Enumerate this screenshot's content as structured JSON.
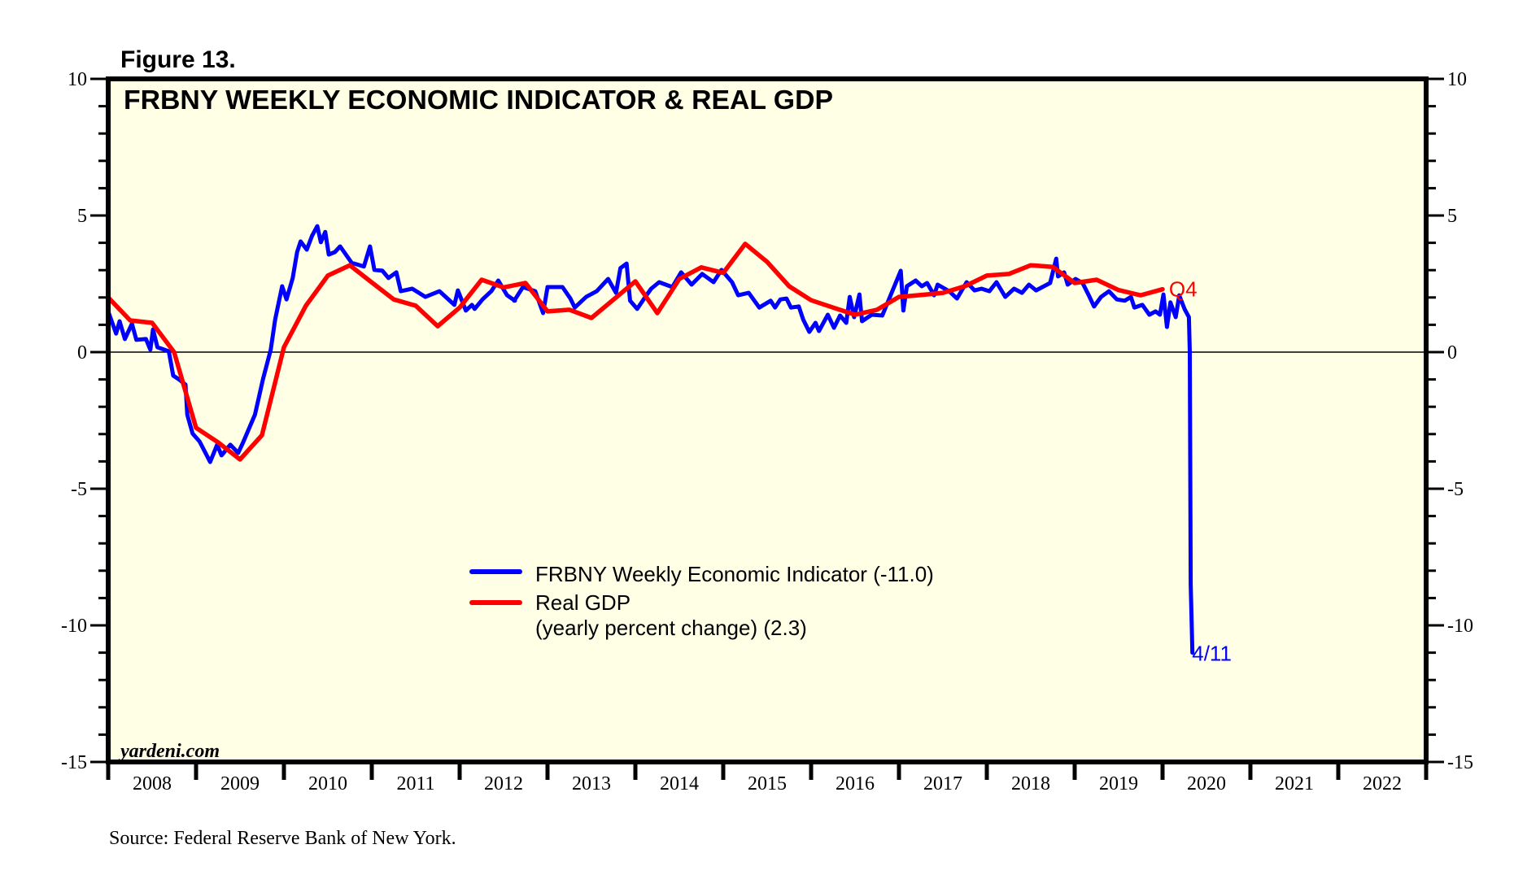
{
  "figure_label": "Figure 13.",
  "source_note": "Source: Federal Reserve Bank of New York.",
  "watermark": "yardeni.com",
  "colors": {
    "plot_background": "#ffffe6",
    "wei": "#0000ff",
    "gdp": "#ff0000",
    "frame": "#000000"
  },
  "chart_data": {
    "type": "line",
    "title": "FRBNY WEEKLY ECONOMIC INDICATOR & REAL GDP",
    "xlabel": "",
    "ylabel": "",
    "x_unit": "year",
    "xlim": [
      2008,
      2023
    ],
    "ylim": [
      -15,
      10
    ],
    "y_major_ticks": [
      10,
      5,
      0,
      -5,
      -10,
      -15
    ],
    "y_tick_labels": [
      "10",
      "5",
      "0",
      "-5",
      "-10",
      "-15"
    ],
    "y_minor_step": 1,
    "x_tick_labels": [
      "2008",
      "2009",
      "2010",
      "2011",
      "2012",
      "2013",
      "2014",
      "2015",
      "2016",
      "2017",
      "2018",
      "2019",
      "2020",
      "2021",
      "2022"
    ],
    "zero_line": true,
    "grid": false,
    "legend_position": "center-bottom",
    "legend": [
      {
        "label": "FRBNY Weekly Economic Indicator (-11.0)",
        "series": "wei"
      },
      {
        "label": "Real GDP",
        "label_line2": "(yearly percent change) (2.3)",
        "series": "gdp"
      }
    ],
    "annotations": [
      {
        "text": "Q4",
        "series": "gdp",
        "x": 2019.99,
        "y": 2.3
      },
      {
        "text": "4/11",
        "series": "wei",
        "x": 2020.28,
        "y": -11.0
      }
    ],
    "series": [
      {
        "name": "FRBNY Weekly Economic Indicator",
        "key": "wei",
        "latest": -11.0,
        "points": [
          [
            2008.0,
            1.49
          ],
          [
            2008.09,
            0.68
          ],
          [
            2008.13,
            1.13
          ],
          [
            2008.19,
            0.48
          ],
          [
            2008.27,
            1.04
          ],
          [
            2008.32,
            0.45
          ],
          [
            2008.43,
            0.48
          ],
          [
            2008.48,
            0.09
          ],
          [
            2008.51,
            0.83
          ],
          [
            2008.56,
            0.18
          ],
          [
            2008.69,
            0.03
          ],
          [
            2008.74,
            -0.86
          ],
          [
            2008.81,
            -1.01
          ],
          [
            2008.88,
            -1.19
          ],
          [
            2008.9,
            -2.29
          ],
          [
            2008.96,
            -2.98
          ],
          [
            2009.04,
            -3.27
          ],
          [
            2009.16,
            -4.02
          ],
          [
            2009.24,
            -3.39
          ],
          [
            2009.29,
            -3.78
          ],
          [
            2009.39,
            -3.39
          ],
          [
            2009.48,
            -3.69
          ],
          [
            2009.54,
            -3.27
          ],
          [
            2009.67,
            -2.29
          ],
          [
            2009.76,
            -1.01
          ],
          [
            2009.85,
            0.09
          ],
          [
            2009.9,
            1.19
          ],
          [
            2009.98,
            2.41
          ],
          [
            2010.03,
            1.93
          ],
          [
            2010.1,
            2.71
          ],
          [
            2010.15,
            3.66
          ],
          [
            2010.19,
            4.05
          ],
          [
            2010.26,
            3.75
          ],
          [
            2010.32,
            4.26
          ],
          [
            2010.38,
            4.61
          ],
          [
            2010.42,
            4.02
          ],
          [
            2010.47,
            4.4
          ],
          [
            2010.51,
            3.57
          ],
          [
            2010.58,
            3.66
          ],
          [
            2010.64,
            3.87
          ],
          [
            2010.77,
            3.27
          ],
          [
            2010.91,
            3.13
          ],
          [
            2010.98,
            3.87
          ],
          [
            2011.03,
            3.01
          ],
          [
            2011.12,
            2.98
          ],
          [
            2011.19,
            2.71
          ],
          [
            2011.28,
            2.92
          ],
          [
            2011.33,
            2.23
          ],
          [
            2011.46,
            2.32
          ],
          [
            2011.61,
            2.02
          ],
          [
            2011.77,
            2.23
          ],
          [
            2011.94,
            1.73
          ],
          [
            2011.98,
            2.26
          ],
          [
            2012.07,
            1.52
          ],
          [
            2012.14,
            1.73
          ],
          [
            2012.17,
            1.58
          ],
          [
            2012.26,
            1.93
          ],
          [
            2012.36,
            2.23
          ],
          [
            2012.44,
            2.62
          ],
          [
            2012.54,
            2.08
          ],
          [
            2012.63,
            1.88
          ],
          [
            2012.62,
            1.88
          ],
          [
            2012.72,
            2.38
          ],
          [
            2012.86,
            2.23
          ],
          [
            2012.95,
            1.43
          ],
          [
            2013.0,
            2.38
          ],
          [
            2013.17,
            2.38
          ],
          [
            2013.26,
            1.96
          ],
          [
            2013.31,
            1.63
          ],
          [
            2013.44,
            2.02
          ],
          [
            2013.56,
            2.23
          ],
          [
            2013.69,
            2.68
          ],
          [
            2013.78,
            2.17
          ],
          [
            2013.83,
            3.07
          ],
          [
            2013.9,
            3.24
          ],
          [
            2013.94,
            1.88
          ],
          [
            2014.02,
            1.58
          ],
          [
            2014.1,
            1.96
          ],
          [
            2014.18,
            2.32
          ],
          [
            2014.27,
            2.56
          ],
          [
            2014.42,
            2.38
          ],
          [
            2014.52,
            2.92
          ],
          [
            2014.64,
            2.47
          ],
          [
            2014.76,
            2.86
          ],
          [
            2014.89,
            2.56
          ],
          [
            2014.98,
            3.01
          ],
          [
            2015.1,
            2.56
          ],
          [
            2015.17,
            2.08
          ],
          [
            2015.29,
            2.17
          ],
          [
            2015.41,
            1.63
          ],
          [
            2015.54,
            1.88
          ],
          [
            2015.59,
            1.63
          ],
          [
            2015.65,
            1.93
          ],
          [
            2015.72,
            1.96
          ],
          [
            2015.77,
            1.63
          ],
          [
            2015.86,
            1.67
          ],
          [
            2015.91,
            1.19
          ],
          [
            2015.98,
            0.74
          ],
          [
            2016.05,
            1.07
          ],
          [
            2016.09,
            0.77
          ],
          [
            2016.19,
            1.37
          ],
          [
            2016.26,
            0.89
          ],
          [
            2016.33,
            1.34
          ],
          [
            2016.4,
            1.07
          ],
          [
            2016.44,
            2.02
          ],
          [
            2016.49,
            1.28
          ],
          [
            2016.55,
            2.11
          ],
          [
            2016.58,
            1.13
          ],
          [
            2016.69,
            1.37
          ],
          [
            2016.81,
            1.34
          ],
          [
            2016.89,
            1.96
          ],
          [
            2017.02,
            2.98
          ],
          [
            2017.05,
            1.52
          ],
          [
            2017.09,
            2.41
          ],
          [
            2017.19,
            2.62
          ],
          [
            2017.26,
            2.41
          ],
          [
            2017.32,
            2.53
          ],
          [
            2017.4,
            2.08
          ],
          [
            2017.44,
            2.47
          ],
          [
            2017.57,
            2.23
          ],
          [
            2017.66,
            1.96
          ],
          [
            2017.77,
            2.56
          ],
          [
            2017.86,
            2.26
          ],
          [
            2017.94,
            2.32
          ],
          [
            2018.03,
            2.23
          ],
          [
            2018.11,
            2.56
          ],
          [
            2018.21,
            2.02
          ],
          [
            2018.31,
            2.32
          ],
          [
            2018.4,
            2.17
          ],
          [
            2018.48,
            2.47
          ],
          [
            2018.56,
            2.26
          ],
          [
            2018.65,
            2.41
          ],
          [
            2018.72,
            2.53
          ],
          [
            2018.79,
            3.42
          ],
          [
            2018.81,
            2.77
          ],
          [
            2018.88,
            2.92
          ],
          [
            2018.92,
            2.47
          ],
          [
            2019.01,
            2.68
          ],
          [
            2019.09,
            2.53
          ],
          [
            2019.16,
            2.08
          ],
          [
            2019.22,
            1.67
          ],
          [
            2019.3,
            2.02
          ],
          [
            2019.39,
            2.23
          ],
          [
            2019.48,
            1.93
          ],
          [
            2019.57,
            1.88
          ],
          [
            2019.64,
            2.02
          ],
          [
            2019.68,
            1.63
          ],
          [
            2019.77,
            1.73
          ],
          [
            2019.85,
            1.37
          ],
          [
            2019.92,
            1.49
          ],
          [
            2019.97,
            1.37
          ],
          [
            2020.01,
            2.11
          ],
          [
            2020.05,
            0.92
          ],
          [
            2020.09,
            1.82
          ],
          [
            2020.15,
            1.28
          ],
          [
            2020.19,
            2.08
          ],
          [
            2020.25,
            1.58
          ],
          [
            2020.3,
            1.28
          ],
          [
            2020.31,
            0.0
          ],
          [
            2020.32,
            -8.5
          ],
          [
            2020.34,
            -11.0
          ]
        ]
      },
      {
        "name": "Real GDP (yearly percent change)",
        "key": "gdp",
        "latest": 2.3,
        "points": [
          [
            2008.0,
            2.0
          ],
          [
            2008.25,
            1.16
          ],
          [
            2008.5,
            1.07
          ],
          [
            2008.75,
            0.0
          ],
          [
            2009.0,
            -2.77
          ],
          [
            2009.25,
            -3.3
          ],
          [
            2009.5,
            -3.93
          ],
          [
            2009.75,
            -3.04
          ],
          [
            2010.0,
            0.18
          ],
          [
            2010.25,
            1.7
          ],
          [
            2010.5,
            2.8
          ],
          [
            2010.75,
            3.18
          ],
          [
            2011.0,
            2.55
          ],
          [
            2011.25,
            1.93
          ],
          [
            2011.5,
            1.7
          ],
          [
            2011.75,
            0.95
          ],
          [
            2012.0,
            1.63
          ],
          [
            2012.25,
            2.65
          ],
          [
            2012.5,
            2.37
          ],
          [
            2012.75,
            2.53
          ],
          [
            2013.0,
            1.49
          ],
          [
            2013.25,
            1.55
          ],
          [
            2013.5,
            1.25
          ],
          [
            2013.75,
            1.92
          ],
          [
            2014.0,
            2.59
          ],
          [
            2014.25,
            1.43
          ],
          [
            2014.5,
            2.68
          ],
          [
            2014.75,
            3.1
          ],
          [
            2015.0,
            2.9
          ],
          [
            2015.25,
            3.96
          ],
          [
            2015.5,
            3.3
          ],
          [
            2015.75,
            2.41
          ],
          [
            2016.0,
            1.9
          ],
          [
            2016.25,
            1.63
          ],
          [
            2016.5,
            1.37
          ],
          [
            2016.75,
            1.55
          ],
          [
            2017.0,
            2.02
          ],
          [
            2017.25,
            2.09
          ],
          [
            2017.5,
            2.17
          ],
          [
            2017.75,
            2.41
          ],
          [
            2018.0,
            2.8
          ],
          [
            2018.25,
            2.86
          ],
          [
            2018.5,
            3.18
          ],
          [
            2018.75,
            3.12
          ],
          [
            2019.0,
            2.53
          ],
          [
            2019.25,
            2.65
          ],
          [
            2019.5,
            2.27
          ],
          [
            2019.75,
            2.08
          ],
          [
            2020.0,
            2.3
          ]
        ]
      }
    ]
  }
}
